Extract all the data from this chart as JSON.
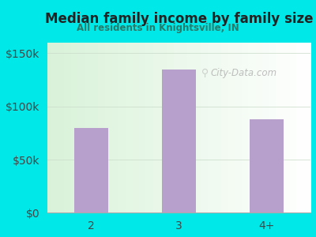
{
  "title": "Median family income by family size",
  "subtitle": "All residents in Knightsville, IN",
  "categories": [
    "2",
    "3",
    "4+"
  ],
  "values": [
    80000,
    135000,
    88000
  ],
  "bar_color": "#b8a0cc",
  "background_color": "#00e8e8",
  "title_color": "#222222",
  "subtitle_color": "#2a7a6a",
  "axis_label_color": "#444444",
  "ytick_labels": [
    "$0",
    "$50k",
    "$100k",
    "$150k"
  ],
  "ytick_values": [
    0,
    50000,
    100000,
    150000
  ],
  "ylim": [
    0,
    160000
  ],
  "watermark": "City-Data.com",
  "bar_width": 0.38
}
